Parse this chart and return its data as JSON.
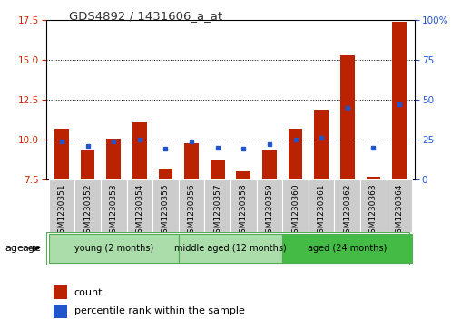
{
  "title": "GDS4892 / 1431606_a_at",
  "samples": [
    "GSM1230351",
    "GSM1230352",
    "GSM1230353",
    "GSM1230354",
    "GSM1230355",
    "GSM1230356",
    "GSM1230357",
    "GSM1230358",
    "GSM1230359",
    "GSM1230360",
    "GSM1230361",
    "GSM1230362",
    "GSM1230363",
    "GSM1230364"
  ],
  "count_values": [
    10.65,
    9.3,
    10.05,
    11.05,
    8.1,
    9.75,
    8.75,
    8.0,
    9.3,
    10.65,
    11.85,
    15.3,
    7.65,
    17.4
  ],
  "percentile_values": [
    24,
    21,
    24,
    25,
    19,
    24,
    20,
    19,
    22,
    25,
    26,
    45,
    20,
    47
  ],
  "baseline": 7.5,
  "ylim_left": [
    7.5,
    17.5
  ],
  "ylim_right": [
    0,
    100
  ],
  "yticks_left": [
    7.5,
    10.0,
    12.5,
    15.0,
    17.5
  ],
  "yticks_right": [
    0,
    25,
    50,
    75,
    100
  ],
  "bar_color": "#BB2200",
  "percentile_color": "#2255CC",
  "bar_width": 0.55,
  "groups": [
    {
      "label": "young (2 months)",
      "indices": [
        0,
        1,
        2,
        3,
        4
      ],
      "color": "#AADDAA"
    },
    {
      "label": "middle aged (12 months)",
      "indices": [
        5,
        6,
        7,
        8
      ],
      "color": "#AADDAA"
    },
    {
      "label": "aged (24 months)",
      "indices": [
        9,
        10,
        11,
        12,
        13
      ],
      "color": "#44BB44"
    }
  ],
  "group_border_color": "#55AA55",
  "sample_cell_color": "#CCCCCC",
  "xlabel_age": "age",
  "legend_count_label": "count",
  "legend_percentile_label": "percentile rank within the sample",
  "background_color": "#FFFFFF",
  "plot_bg_color": "#FFFFFF",
  "grid_color": "#000000",
  "title_color": "#333333",
  "left_axis_color": "#CC2200",
  "right_axis_color": "#2255CC"
}
